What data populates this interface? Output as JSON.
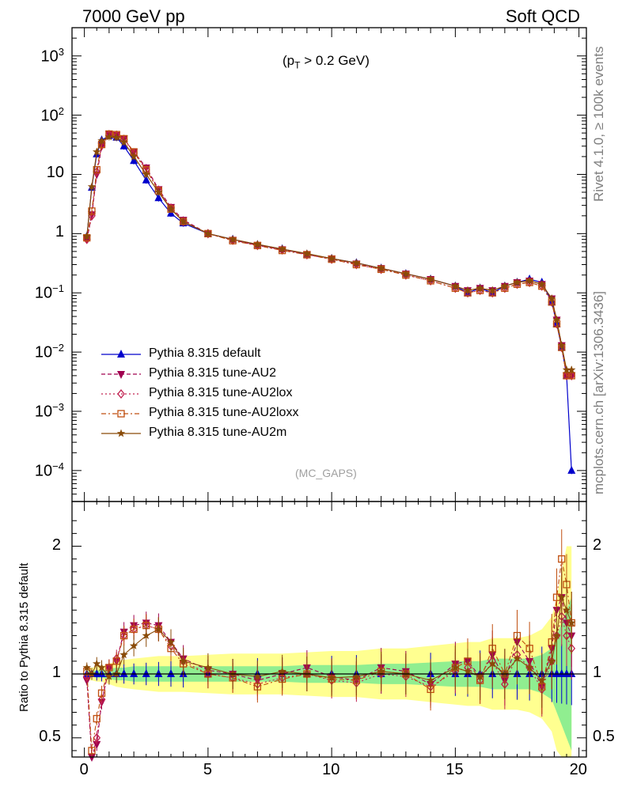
{
  "header": {
    "energy_label": "7000 GeV pp",
    "process_label": "Soft QCD",
    "cut_label": "(p",
    "cut_sub": "T",
    "cut_rest": " > 0.2 GeV)",
    "analysis_label": "(MC_GAPS)"
  },
  "side": {
    "rivet_label": "Rivet 4.1.0, ≥ 100k events",
    "mcplots_label": "mcplots.cern.ch [arXiv:1306.3436]"
  },
  "chart_data": {
    "type": "line",
    "title": "7000 GeV pp — Soft QCD (pT > 0.2 GeV)",
    "xlabel": "",
    "ylabel": "",
    "ratio_ylabel": "Ratio to Pythia 8.315 default",
    "xlim": [
      -0.5,
      20.3
    ],
    "ylim_log": [
      3e-05,
      3000
    ],
    "ratio_ylim": [
      0.35,
      2.35
    ],
    "x_ticks": [
      "0",
      "5",
      "10",
      "15",
      "20"
    ],
    "y_ticks": [
      {
        "mant": "10",
        "exp": "3"
      },
      {
        "mant": "10",
        "exp": "2"
      },
      {
        "mant": "10",
        "exp": ""
      },
      {
        "mant": "1",
        "exp": ""
      },
      {
        "mant": "10",
        "exp": "−1"
      },
      {
        "mant": "10",
        "exp": "−2"
      },
      {
        "mant": "10",
        "exp": "−3"
      },
      {
        "mant": "10",
        "exp": "−4"
      }
    ],
    "ratio_ticks": [
      "2",
      "1",
      "0.5"
    ],
    "legend_position": "lower-left",
    "x": [
      0.1,
      0.3,
      0.5,
      0.7,
      1.0,
      1.3,
      1.6,
      2.0,
      2.5,
      3.0,
      3.5,
      4.0,
      5.0,
      6.0,
      7.0,
      8.0,
      9.0,
      10.0,
      11.0,
      12.0,
      13.0,
      14.0,
      15.0,
      15.5,
      16.0,
      16.5,
      17.0,
      17.5,
      18.0,
      18.5,
      18.9,
      19.1,
      19.3,
      19.5,
      19.7
    ],
    "series": [
      {
        "name": "Pythia 8.315 default",
        "color": "#0000cc",
        "marker": "triangle-up",
        "values": [
          0.9,
          6.0,
          22,
          38,
          45,
          42,
          30,
          17,
          8,
          4.0,
          2.2,
          1.5,
          1.0,
          0.8,
          0.65,
          0.55,
          0.45,
          0.38,
          0.32,
          0.26,
          0.21,
          0.17,
          0.13,
          0.1,
          0.12,
          0.1,
          0.13,
          0.15,
          0.17,
          0.15,
          0.07,
          0.03,
          0.012,
          0.004,
          0.0001
        ],
        "ratio": [
          1.0,
          1.0,
          1.0,
          1.0,
          1.0,
          1.0,
          1.0,
          1.0,
          1.0,
          1.0,
          1.0,
          1.0,
          1.0,
          1.0,
          1.0,
          1.0,
          1.0,
          1.0,
          1.0,
          1.0,
          1.0,
          1.0,
          1.0,
          1.0,
          1.0,
          1.0,
          1.0,
          1.0,
          1.0,
          1.0,
          1.0,
          1.0,
          1.0,
          1.0,
          1.0
        ]
      },
      {
        "name": "Pythia 8.315 tune-AU2",
        "color": "#a0004f",
        "marker": "triangle-down",
        "values": [
          0.8,
          2.1,
          10,
          30,
          48,
          46,
          40,
          24,
          13,
          5.6,
          2.8,
          1.7,
          1.0,
          0.78,
          0.64,
          0.54,
          0.45,
          0.38,
          0.31,
          0.26,
          0.21,
          0.17,
          0.13,
          0.11,
          0.12,
          0.11,
          0.13,
          0.15,
          0.16,
          0.14,
          0.08,
          0.035,
          0.013,
          0.004,
          0.004
        ],
        "ratio": [
          0.95,
          0.35,
          0.45,
          0.78,
          1.05,
          1.1,
          1.33,
          1.38,
          1.4,
          1.38,
          1.25,
          1.12,
          1.03,
          1.0,
          0.95,
          1.0,
          1.05,
          0.98,
          0.95,
          1.05,
          1.02,
          0.92,
          1.08,
          1.1,
          0.98,
          1.15,
          0.95,
          1.25,
          1.1,
          0.9,
          1.2,
          1.5,
          1.6,
          1.4,
          1.3
        ]
      },
      {
        "name": "Pythia 8.315 tune-AU2lox",
        "color": "#c0204f",
        "marker": "diamond-open",
        "values": [
          0.8,
          2.0,
          11,
          31,
          47,
          46,
          39,
          23,
          12,
          5.4,
          2.7,
          1.6,
          1.0,
          0.77,
          0.63,
          0.53,
          0.44,
          0.37,
          0.3,
          0.25,
          0.2,
          0.16,
          0.12,
          0.1,
          0.11,
          0.1,
          0.12,
          0.14,
          0.15,
          0.13,
          0.07,
          0.03,
          0.012,
          0.004,
          0.004
        ],
        "ratio": [
          0.98,
          0.32,
          0.5,
          0.8,
          1.05,
          1.12,
          1.3,
          1.35,
          1.38,
          1.35,
          1.22,
          1.1,
          1.0,
          0.97,
          0.92,
          0.97,
          1.0,
          0.95,
          0.93,
          1.0,
          0.98,
          0.9,
          1.02,
          1.05,
          0.95,
          1.1,
          0.92,
          1.15,
          1.05,
          0.88,
          1.1,
          1.3,
          1.45,
          1.3,
          1.2
        ]
      },
      {
        "name": "Pythia 8.315 tune-AU2loxx",
        "color": "#c04f10",
        "marker": "square-open",
        "values": [
          0.85,
          2.4,
          12,
          32,
          48,
          47,
          40,
          24,
          12,
          5.3,
          2.6,
          1.6,
          1.0,
          0.76,
          0.63,
          0.52,
          0.44,
          0.37,
          0.3,
          0.25,
          0.2,
          0.16,
          0.12,
          0.1,
          0.11,
          0.1,
          0.12,
          0.14,
          0.15,
          0.13,
          0.07,
          0.03,
          0.012,
          0.004,
          0.004
        ],
        "ratio": [
          1.02,
          0.4,
          0.65,
          0.85,
          1.05,
          1.1,
          1.3,
          1.35,
          1.38,
          1.35,
          1.2,
          1.08,
          1.0,
          0.97,
          0.9,
          0.96,
          1.0,
          0.96,
          0.95,
          1.02,
          1.0,
          0.88,
          1.05,
          1.1,
          0.95,
          1.2,
          1.0,
          1.3,
          1.2,
          0.9,
          1.25,
          1.6,
          1.9,
          1.7,
          1.4
        ]
      },
      {
        "name": "Pythia 8.315 tune-AU2m",
        "color": "#8a4b08",
        "marker": "star",
        "values": [
          0.9,
          6.2,
          24,
          37,
          43,
          42,
          35,
          20,
          10,
          5.0,
          2.6,
          1.6,
          1.0,
          0.8,
          0.66,
          0.55,
          0.46,
          0.38,
          0.32,
          0.26,
          0.21,
          0.17,
          0.13,
          0.11,
          0.12,
          0.11,
          0.13,
          0.15,
          0.16,
          0.14,
          0.08,
          0.035,
          0.013,
          0.005,
          0.005
        ],
        "ratio": [
          1.05,
          1.0,
          1.08,
          1.05,
          0.98,
          1.0,
          1.15,
          1.22,
          1.3,
          1.35,
          1.25,
          1.1,
          1.05,
          1.0,
          0.98,
          1.02,
          1.0,
          0.97,
          0.98,
          1.02,
          1.0,
          0.95,
          1.05,
          1.02,
          0.98,
          1.08,
          1.0,
          1.12,
          1.05,
          0.95,
          1.1,
          1.3,
          1.6,
          1.5,
          1.4
        ]
      }
    ],
    "ratio_bands": {
      "green_color": "#90ee90",
      "yellow_color": "#ffff90",
      "green": [
        0.02,
        0.02,
        0.03,
        0.03,
        0.04,
        0.05,
        0.05,
        0.06,
        0.06,
        0.06,
        0.06,
        0.06,
        0.06,
        0.06,
        0.06,
        0.06,
        0.07,
        0.07,
        0.07,
        0.08,
        0.08,
        0.09,
        0.1,
        0.1,
        0.1,
        0.12,
        0.12,
        0.12,
        0.12,
        0.15,
        0.2,
        0.3,
        0.4,
        0.5,
        0.6
      ],
      "yellow": [
        0.05,
        0.05,
        0.06,
        0.06,
        0.08,
        0.1,
        0.11,
        0.12,
        0.13,
        0.14,
        0.14,
        0.14,
        0.15,
        0.16,
        0.16,
        0.16,
        0.17,
        0.18,
        0.18,
        0.2,
        0.2,
        0.22,
        0.24,
        0.25,
        0.25,
        0.28,
        0.28,
        0.28,
        0.3,
        0.35,
        0.45,
        0.6,
        0.8,
        1.0,
        1.0
      ]
    }
  }
}
